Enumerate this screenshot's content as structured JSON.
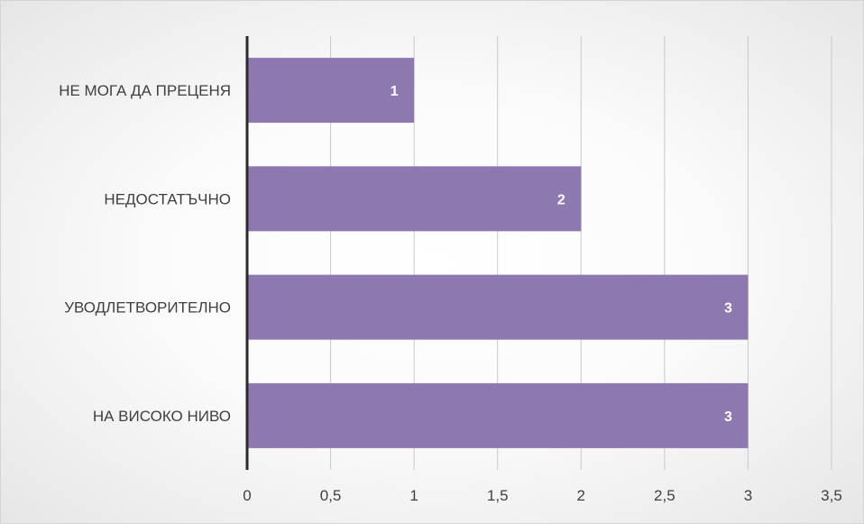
{
  "chart_data": {
    "type": "bar",
    "orientation": "horizontal",
    "title": "",
    "xlabel": "",
    "ylabel": "",
    "categories": [
      "НЕ МОГА ДА ПРЕЦЕНЯ",
      "НЕДОСТАТЪЧНО",
      "УВОДЛЕТВОРИТЕЛНО",
      "НА ВИСОКО НИВО"
    ],
    "values": [
      1,
      2,
      3,
      3
    ],
    "data_labels": [
      "1",
      "2",
      "3",
      "3"
    ],
    "xlim": [
      0,
      3.5
    ],
    "ticks": [
      0,
      0.5,
      1,
      1.5,
      2,
      2.5,
      3,
      3.5
    ],
    "tick_labels": [
      "0",
      "0,5",
      "1",
      "1,5",
      "2",
      "2,5",
      "3",
      "3,5"
    ],
    "grid": "vertical",
    "legend": "none",
    "colors": {
      "bar": "#8e78b0",
      "grid": "#c9c9c9",
      "axis": "#2b2b2b",
      "text": "#3f3f3f",
      "data_label": "#ffffff"
    }
  }
}
